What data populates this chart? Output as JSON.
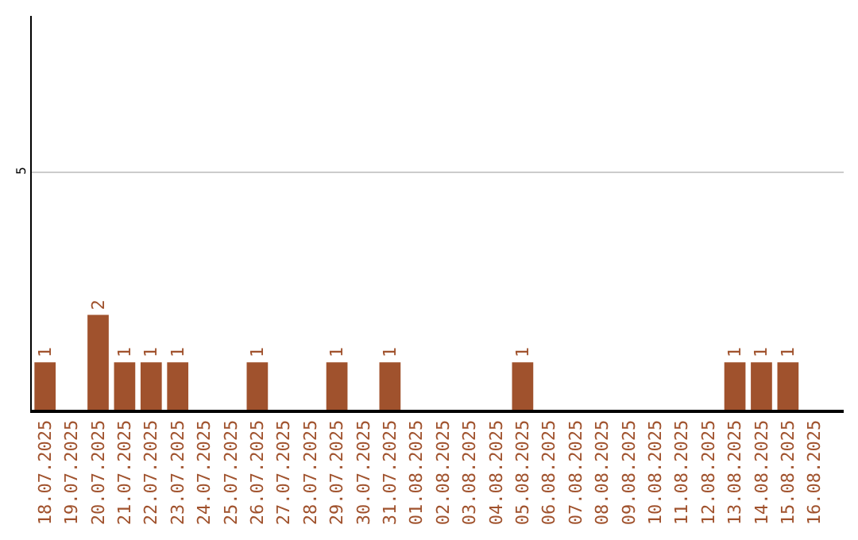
{
  "chart_data": {
    "type": "bar",
    "categories": [
      "18.07.2025",
      "19.07.2025",
      "20.07.2025",
      "21.07.2025",
      "22.07.2025",
      "23.07.2025",
      "24.07.2025",
      "25.07.2025",
      "26.07.2025",
      "27.07.2025",
      "28.07.2025",
      "29.07.2025",
      "30.07.2025",
      "31.07.2025",
      "01.08.2025",
      "02.08.2025",
      "03.08.2025",
      "04.08.2025",
      "05.08.2025",
      "06.08.2025",
      "07.08.2025",
      "08.08.2025",
      "09.08.2025",
      "10.08.2025",
      "11.08.2025",
      "12.08.2025",
      "13.08.2025",
      "14.08.2025",
      "15.08.2025",
      "16.08.2025"
    ],
    "values": [
      1,
      0,
      2,
      1,
      1,
      1,
      0,
      0,
      1,
      0,
      0,
      1,
      0,
      1,
      0,
      0,
      0,
      0,
      1,
      0,
      0,
      0,
      0,
      0,
      0,
      0,
      1,
      1,
      1,
      0
    ],
    "value_labels": [
      "1",
      null,
      "2",
      "1",
      "1",
      "1",
      null,
      null,
      "1",
      null,
      null,
      "1",
      null,
      "1",
      null,
      null,
      null,
      null,
      "1",
      null,
      null,
      null,
      null,
      null,
      null,
      null,
      "1",
      "1",
      "1",
      null
    ],
    "color": "#a0522d",
    "ylim": [
      0,
      8.3
    ],
    "yticks": [
      5
    ],
    "grid": "y"
  }
}
